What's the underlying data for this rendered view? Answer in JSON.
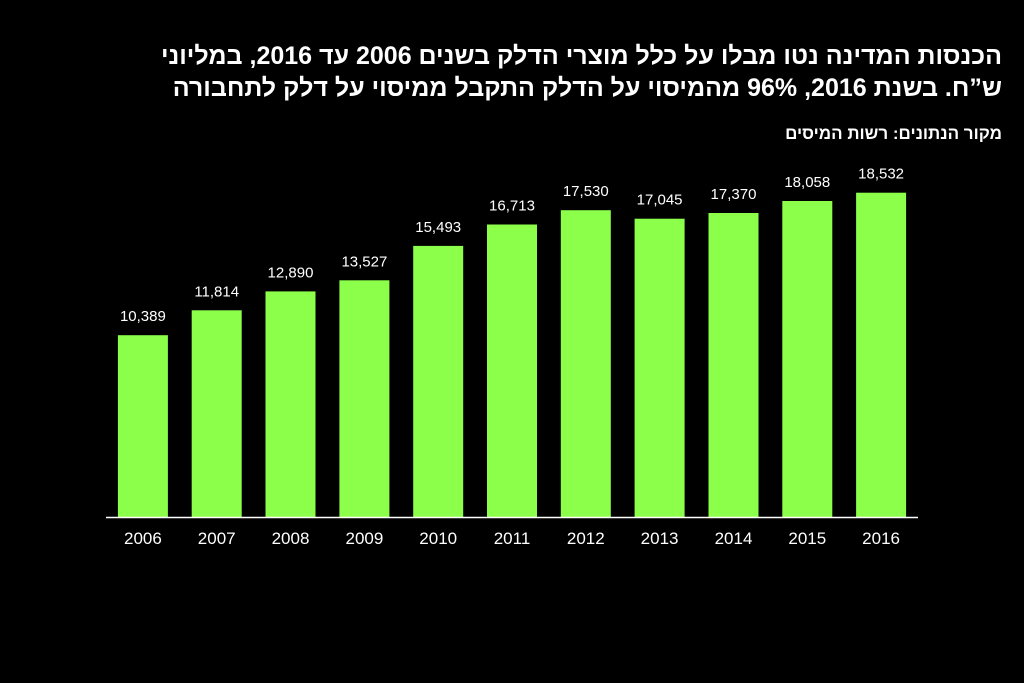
{
  "title_lines": [
    "הכנסות המדינה נטו מבלו על כלל מוצרי הדלק בשנים 2006 עד 2016, במליוני",
    "ש”ח. בשנת 2016, 96% מהמיסוי על הדלק התקבל ממיסוי על דלק לתחבורה"
  ],
  "source": "מקור הנתונים: רשות המיסים",
  "colors": {
    "background": "#000000",
    "bar": "#8cff4a",
    "text": "#ffffff",
    "axis": "#ffffff"
  },
  "chart_data": {
    "type": "bar",
    "title": "הכנסות המדינה נטו מבלו על כלל מוצרי הדלק בשנים 2006 עד 2016, במליוני ש”ח. בשנת 2016, 96% מהמיסוי על הדלק התקבל ממיסוי על דלק לתחבורה",
    "xlabel": "",
    "ylabel": "",
    "categories": [
      "2006",
      "2007",
      "2008",
      "2009",
      "2010",
      "2011",
      "2012",
      "2013",
      "2014",
      "2015",
      "2016"
    ],
    "values": [
      10389,
      11814,
      12890,
      13527,
      15493,
      16713,
      17530,
      17045,
      17370,
      18058,
      18532
    ],
    "value_labels": [
      "10,389",
      "11,814",
      "12,890",
      "13,527",
      "15,493",
      "16,713",
      "17,530",
      "17,045",
      "17,370",
      "18,058",
      "18,532"
    ],
    "ylim": [
      0,
      20000
    ],
    "grid": false,
    "legend": "none"
  }
}
